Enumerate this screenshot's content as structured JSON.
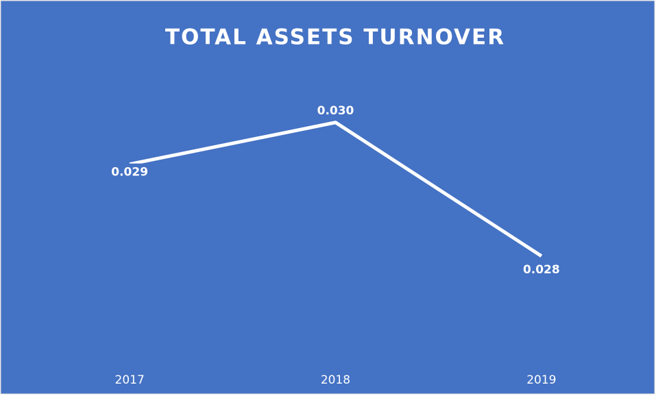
{
  "chart_data": {
    "type": "line",
    "title": "TOTAL ASSETS TURNOVER",
    "categories": [
      "2017",
      "2018",
      "2019"
    ],
    "values": [
      0.0294,
      0.0299,
      0.0283
    ],
    "value_labels": [
      "0.029",
      "0.030",
      "0.028"
    ],
    "color": "#ffffff",
    "ylim": [
      0.0271,
      0.0303
    ]
  }
}
